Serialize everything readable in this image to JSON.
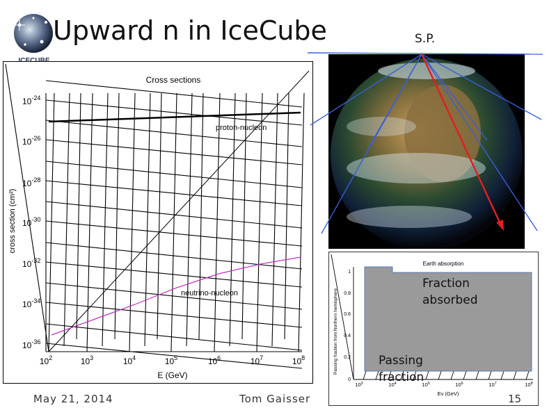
{
  "slide": {
    "title": "Upward n in IceCube",
    "south_pole_label": "S.P.",
    "logo_text": "ICECUBE",
    "footer_date": "May 21, 2014",
    "footer_author": "Tom Gaisser",
    "page_number": "15"
  },
  "cross_section_chart": {
    "type": "line",
    "title": "Cross sections",
    "xlabel": "E   (GeV)",
    "ylabel": "cross section (cm²)",
    "x_ticks": [
      {
        "base": "10",
        "exp": "2"
      },
      {
        "base": "10",
        "exp": "3"
      },
      {
        "base": "10",
        "exp": "4"
      },
      {
        "base": "10",
        "exp": "5"
      },
      {
        "base": "10",
        "exp": "6"
      },
      {
        "base": "10",
        "exp": "7"
      },
      {
        "base": "10",
        "exp": "8"
      }
    ],
    "y_ticks": [
      {
        "base": "10",
        "exp": "-24"
      },
      {
        "base": "10",
        "exp": "-26"
      },
      {
        "base": "10",
        "exp": "-28"
      },
      {
        "base": "10",
        "exp": "-30"
      },
      {
        "base": "10",
        "exp": "-32"
      },
      {
        "base": "10",
        "exp": "-34"
      },
      {
        "base": "10",
        "exp": "-36"
      }
    ],
    "series_labels": {
      "proton": "proton-nucleon",
      "neutrino": "neutrino-nucleon"
    },
    "series_colors": {
      "proton": "#000000",
      "neutrino": "#c030c0"
    }
  },
  "earth_absorption_chart": {
    "title": "Earth absorption",
    "ylabel": "Passing fraction from Northern hemisphere",
    "xlabel": "Eν (GeV)",
    "y_ticks": [
      "0",
      "0.2",
      "0.4",
      "0.6",
      "0.8",
      "1"
    ],
    "x_ticks": [
      {
        "base": "10",
        "exp": "3"
      },
      {
        "base": "10",
        "exp": "4"
      },
      {
        "base": "10",
        "exp": "5"
      },
      {
        "base": "10",
        "exp": "6"
      },
      {
        "base": "10",
        "exp": "7"
      },
      {
        "base": "10",
        "exp": "8"
      }
    ],
    "label_absorbed": [
      "Fraction",
      "absorbed"
    ],
    "label_passing": [
      "Passing",
      "fraction"
    ],
    "fill_color": "#9a9a9a"
  },
  "globe": {
    "beam_color": "#3a5ed8",
    "arrow_color": "#e02020"
  }
}
